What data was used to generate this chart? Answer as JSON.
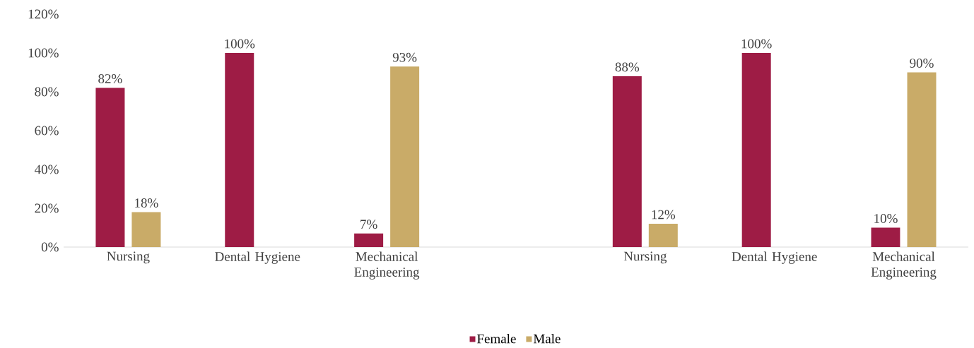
{
  "chart_data": {
    "type": "bar",
    "categories": [
      "Nursing",
      "Dental Hygiene",
      "Mechanical Engineering",
      null,
      "Nursing",
      "Dental Hygiene",
      "Mechanical Engineering"
    ],
    "series": [
      {
        "name": "Female",
        "color": "#9e1c45",
        "values": [
          82,
          100,
          7,
          null,
          88,
          100,
          10
        ],
        "value_labels": [
          "82%",
          "100%",
          "7%",
          null,
          "88%",
          "100%",
          "10%"
        ]
      },
      {
        "name": "Male",
        "color": "#c9ab68",
        "values": [
          18,
          null,
          93,
          null,
          12,
          null,
          90
        ],
        "value_labels": [
          "18%",
          null,
          "93%",
          null,
          "12%",
          null,
          "90%"
        ]
      }
    ],
    "ylim": [
      0,
      120
    ],
    "yticks": [
      {
        "value": 0,
        "label": "0%"
      },
      {
        "value": 20,
        "label": "20%"
      },
      {
        "value": 40,
        "label": "40%"
      },
      {
        "value": 60,
        "label": "60%"
      },
      {
        "value": 80,
        "label": "80%"
      },
      {
        "value": 100,
        "label": "100%"
      },
      {
        "value": 120,
        "label": "120%"
      }
    ],
    "grid": false,
    "legend": "bottom"
  }
}
